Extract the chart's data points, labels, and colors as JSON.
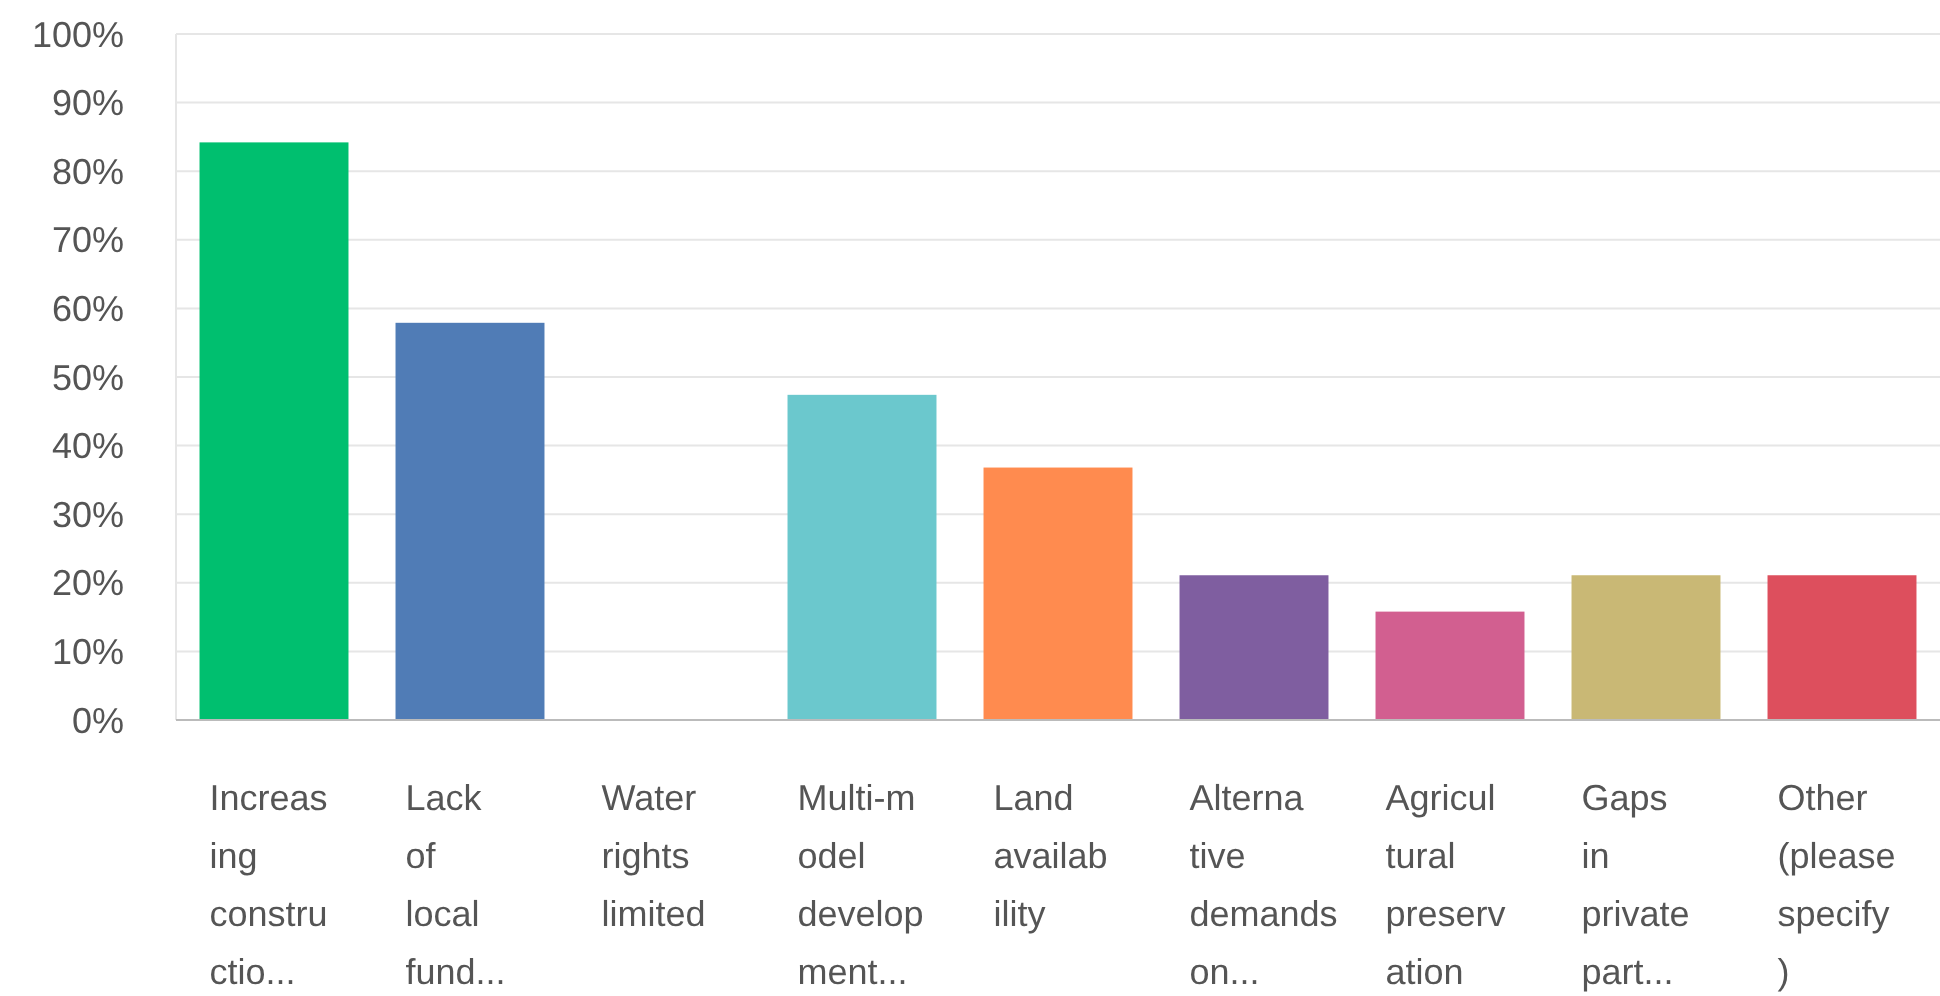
{
  "chart_data": {
    "type": "bar",
    "categories": [
      "Increas\ning\nconstru\nctio...",
      "Lack\nof\nlocal\nfund...",
      "Water\nrights\nlimited",
      "Multi-m\nodel\ndevelop\nment...",
      "Land\navailab\nility",
      "Alterna\ntive\ndemands\non...",
      "Agricul\ntural\npreserv\nation",
      "Gaps\nin\nprivate\npart...",
      "Other\n(please\nspecify\n)"
    ],
    "values": [
      84.2,
      57.9,
      0,
      47.4,
      36.8,
      21.1,
      15.8,
      21.1,
      21.1
    ],
    "colors": [
      "#00bf6f",
      "#507cb6",
      "#f9be00",
      "#6bc8cd",
      "#ff8b4f",
      "#7f5ea0",
      "#d25f90",
      "#c9b875",
      "#dd4f5d"
    ],
    "ylim": [
      0,
      100
    ],
    "yticks": [
      {
        "value": 0,
        "label": "0%"
      },
      {
        "value": 10,
        "label": "10%"
      },
      {
        "value": 20,
        "label": "20%"
      },
      {
        "value": 30,
        "label": "30%"
      },
      {
        "value": 40,
        "label": "40%"
      },
      {
        "value": 50,
        "label": "50%"
      },
      {
        "value": 60,
        "label": "60%"
      },
      {
        "value": 70,
        "label": "70%"
      },
      {
        "value": 80,
        "label": "80%"
      },
      {
        "value": 90,
        "label": "90%"
      },
      {
        "value": 100,
        "label": "100%"
      }
    ],
    "grid": "y"
  }
}
